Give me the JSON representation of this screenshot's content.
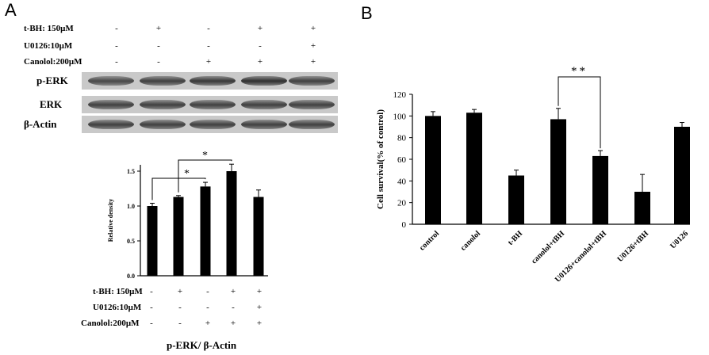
{
  "panel_a": {
    "letter": "A",
    "conditions": [
      {
        "label": "t-BH: 150μM",
        "signs": [
          "-",
          "+",
          "-",
          "+",
          "+"
        ]
      },
      {
        "label": "U0126:10μM",
        "signs": [
          "-",
          "-",
          "-",
          "-",
          "+"
        ]
      },
      {
        "label": "Canolol:200μM",
        "signs": [
          "-",
          "-",
          "+",
          "+",
          "+"
        ]
      }
    ],
    "blots": [
      {
        "label": "p-ERK",
        "intensity": [
          0.8,
          0.85,
          0.9,
          0.95,
          0.85
        ]
      },
      {
        "label": "ERK",
        "intensity": [
          0.85,
          0.85,
          0.85,
          0.85,
          0.85
        ]
      },
      {
        "label": "β-Actin",
        "intensity": [
          0.85,
          0.85,
          0.85,
          0.85,
          0.85
        ]
      }
    ],
    "caption": "p-ERK/ β-Actin"
  },
  "panel_b": {
    "letter": "B"
  },
  "chart_data": [
    {
      "type": "bar",
      "ylabel": "Relative density",
      "ylim": [
        0,
        1.5
      ],
      "yticks": [
        "0.0",
        "0.5",
        "1.0",
        "1.5"
      ],
      "values": [
        1.0,
        1.13,
        1.28,
        1.5,
        1.13
      ],
      "errors": [
        0.04,
        0.02,
        0.06,
        0.1,
        0.1
      ],
      "significance": [
        {
          "from": 0,
          "to": 2,
          "label": "*"
        },
        {
          "from": 1,
          "to": 3,
          "label": "*"
        }
      ],
      "conditions": [
        {
          "label": "t-BH: 150μM",
          "signs": [
            "-",
            "+",
            "-",
            "+",
            "+"
          ]
        },
        {
          "label": "U0126:10μM",
          "signs": [
            "-",
            "-",
            "-",
            "-",
            "+"
          ]
        },
        {
          "label": "Canolol:200μM",
          "signs": [
            "-",
            "-",
            "+",
            "+",
            "+"
          ]
        }
      ]
    },
    {
      "type": "bar",
      "ylabel": "Cell survival(% of control)",
      "ylim": [
        0,
        120
      ],
      "yticks": [
        "0",
        "20",
        "40",
        "60",
        "80",
        "100",
        "120"
      ],
      "categories": [
        "control",
        "canolol",
        "t-BH",
        "canolol+tBH",
        "U0126+canolol+tBH",
        "U0126+tBH",
        "U0126"
      ],
      "values": [
        100,
        103,
        45,
        97,
        63,
        30,
        90
      ],
      "errors": [
        4,
        3,
        5,
        10,
        5,
        16,
        4
      ],
      "significance": [
        {
          "from": 3,
          "to": 4,
          "label": "**"
        }
      ]
    }
  ]
}
